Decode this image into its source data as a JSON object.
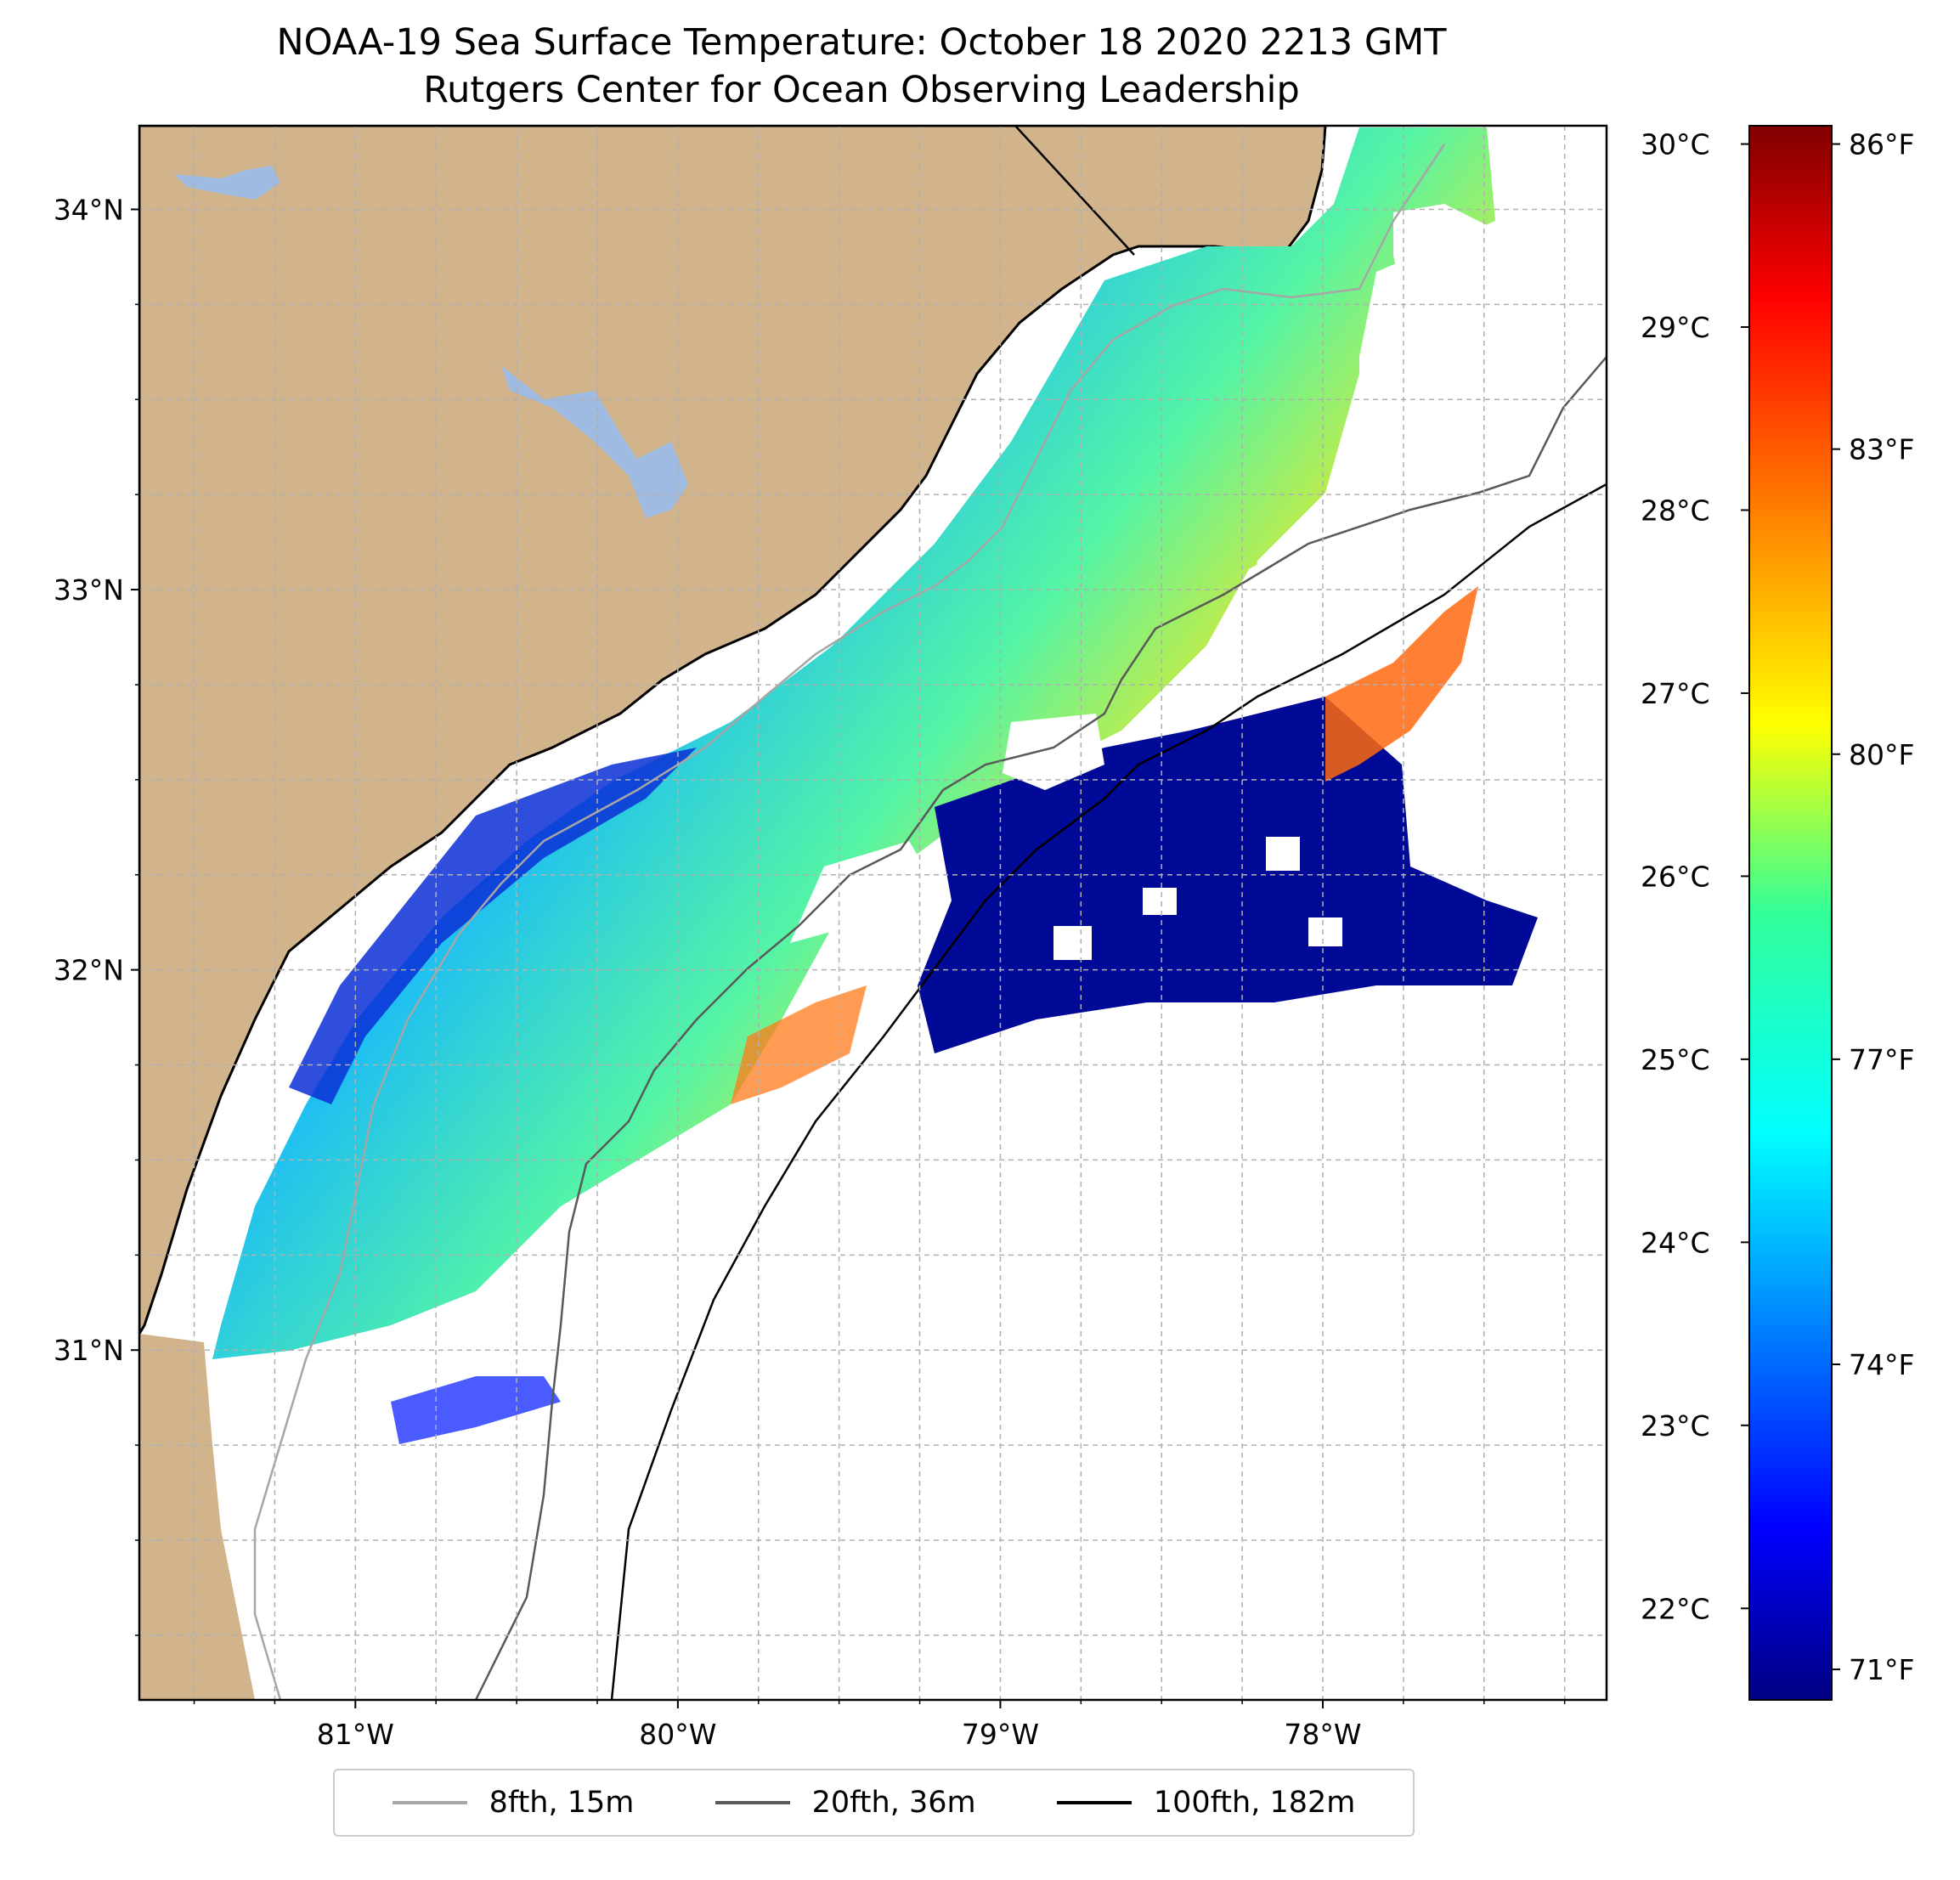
{
  "title": {
    "line1": "NOAA-19 Sea Surface Temperature: October 18 2020 2213 GMT",
    "line2": "Rutgers Center for Ocean Observing Leadership"
  },
  "map": {
    "lon_range": [
      -81.67,
      -77.12
    ],
    "lat_range": [
      30.08,
      34.22
    ],
    "lat_ticks": [
      {
        "value": 34,
        "label": "34°N"
      },
      {
        "value": 33,
        "label": "33°N"
      },
      {
        "value": 32,
        "label": "32°N"
      },
      {
        "value": 31,
        "label": "31°N"
      }
    ],
    "lon_ticks": [
      {
        "value": -81,
        "label": "81°W"
      },
      {
        "value": -80,
        "label": "80°W"
      },
      {
        "value": -79,
        "label": "79°W"
      },
      {
        "value": -78,
        "label": "78°W"
      }
    ],
    "gridlines": "dashed",
    "colors": {
      "land": "#d2b48c",
      "lakes": "#9fbbe2",
      "no_data": "#ffffff",
      "isobath_8fth": "#a6a6a6",
      "isobath_20fth": "#595959",
      "isobath_100fth": "#000000"
    }
  },
  "colorbar": {
    "colormap": "jet",
    "celsius_range": [
      21.5,
      30.1
    ],
    "celsius_ticks": [
      {
        "value": 30,
        "label": "30°C"
      },
      {
        "value": 29,
        "label": "29°C"
      },
      {
        "value": 28,
        "label": "28°C"
      },
      {
        "value": 27,
        "label": "27°C"
      },
      {
        "value": 26,
        "label": "26°C"
      },
      {
        "value": 25,
        "label": "25°C"
      },
      {
        "value": 24,
        "label": "24°C"
      },
      {
        "value": 23,
        "label": "23°C"
      },
      {
        "value": 22,
        "label": "22°C"
      }
    ],
    "fahrenheit_ticks": [
      {
        "value": 86,
        "label": "86°F"
      },
      {
        "value": 83,
        "label": "83°F"
      },
      {
        "value": 80,
        "label": "80°F"
      },
      {
        "value": 77,
        "label": "77°F"
      },
      {
        "value": 74,
        "label": "74°F"
      },
      {
        "value": 71,
        "label": "71°F"
      }
    ]
  },
  "legend": {
    "items": [
      {
        "label": "8fth, 15m",
        "color": "#a6a6a6"
      },
      {
        "label": "20fth, 36m",
        "color": "#595959"
      },
      {
        "label": "100fth, 182m",
        "color": "#000000"
      }
    ]
  }
}
